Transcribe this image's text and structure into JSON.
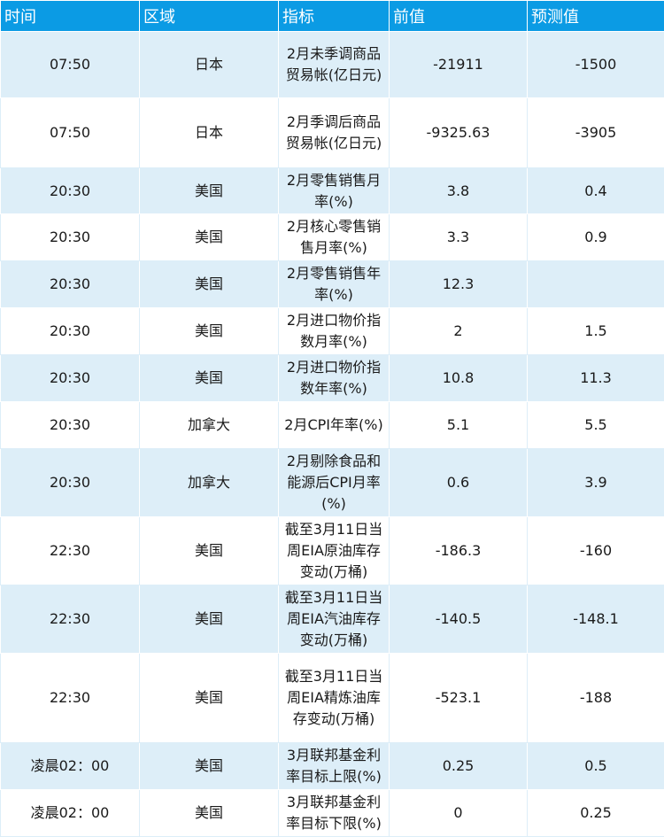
{
  "table": {
    "headers": [
      "时间",
      "区域",
      "指标",
      "前值",
      "预测值"
    ],
    "rows": [
      {
        "time": "07:50",
        "region": "日本",
        "indicator": "2月未季调商品贸易帐(亿日元)",
        "previous": "-21911",
        "forecast": "-1500"
      },
      {
        "time": "07:50",
        "region": "日本",
        "indicator": "2月季调后商品贸易帐(亿日元)",
        "previous": "-9325.63",
        "forecast": "-3905"
      },
      {
        "time": "20:30",
        "region": "美国",
        "indicator": "2月零售销售月率(%)",
        "previous": "3.8",
        "forecast": "0.4"
      },
      {
        "time": "20:30",
        "region": "美国",
        "indicator": "2月核心零售销售月率(%)",
        "previous": "3.3",
        "forecast": "0.9"
      },
      {
        "time": "20:30",
        "region": "美国",
        "indicator": "2月零售销售年率(%)",
        "previous": "12.3",
        "forecast": ""
      },
      {
        "time": "20:30",
        "region": "美国",
        "indicator": "2月进口物价指数月率(%)",
        "previous": "2",
        "forecast": "1.5"
      },
      {
        "time": "20:30",
        "region": "美国",
        "indicator": "2月进口物价指数年率(%)",
        "previous": "10.8",
        "forecast": "11.3"
      },
      {
        "time": "20:30",
        "region": "加拿大",
        "indicator": "2月CPI年率(%)",
        "previous": "5.1",
        "forecast": "5.5"
      },
      {
        "time": "20:30",
        "region": "加拿大",
        "indicator": "2月剔除食品和能源后CPI月率(%)",
        "previous": "0.6",
        "forecast": "3.9"
      },
      {
        "time": "22:30",
        "region": "美国",
        "indicator": "截至3月11日当周EIA原油库存变动(万桶)",
        "previous": "-186.3",
        "forecast": "-160"
      },
      {
        "time": "22:30",
        "region": "美国",
        "indicator": "截至3月11日当周EIA汽油库存变动(万桶)",
        "previous": "-140.5",
        "forecast": "-148.1"
      },
      {
        "time": "22:30",
        "region": "美国",
        "indicator": "截至3月11日当周EIA精炼油库存变动(万桶)",
        "previous": "-523.1",
        "forecast": "-188"
      },
      {
        "time": "凌晨02：00",
        "region": "美国",
        "indicator": "3月联邦基金利率目标上限(%)",
        "previous": "0.25",
        "forecast": "0.5"
      },
      {
        "time": "凌晨02：00",
        "region": "美国",
        "indicator": "3月联邦基金利率目标下限(%)",
        "previous": "0",
        "forecast": "0.25"
      }
    ]
  }
}
